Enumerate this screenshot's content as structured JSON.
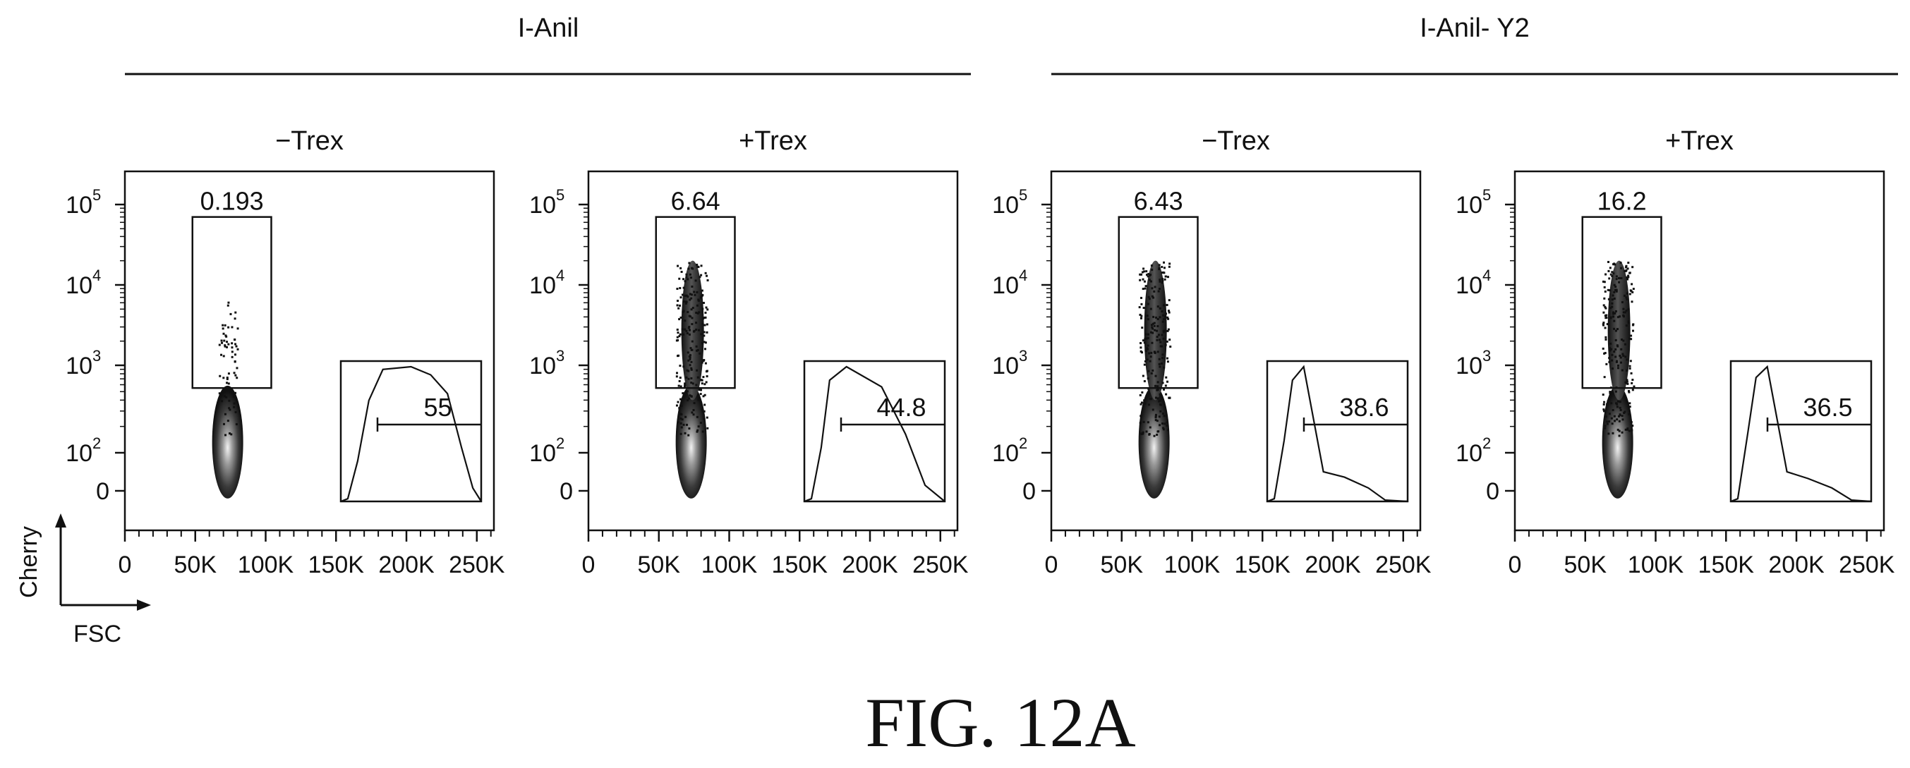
{
  "caption": "FIG. 12A",
  "axes_legend": {
    "y_label": "Cherry",
    "x_label": "FSC"
  },
  "groups": [
    {
      "title": "I-Anil"
    },
    {
      "title": "I-Anil- Y2"
    }
  ],
  "chart_data": [
    {
      "type": "scatter",
      "group": "I-Anil",
      "title": "−Trex",
      "xlabel": "FSC",
      "ylabel": "Cherry",
      "x_ticks": [
        "0",
        "50K",
        "100K",
        "150K",
        "200K",
        "250K"
      ],
      "y_ticks": [
        "0",
        "10",
        "10",
        "10",
        "10"
      ],
      "y_tick_exponents": [
        "",
        "2",
        "3",
        "4",
        "5"
      ],
      "xlim": [
        0,
        262144
      ],
      "y_scale": "biexponential",
      "gate": {
        "label": "0.193",
        "x_range": [
          48000,
          104000
        ],
        "y_range": [
          550,
          70000
        ]
      },
      "inset": {
        "type": "histogram",
        "gate_label": "55",
        "gate_value": 55
      }
    },
    {
      "type": "scatter",
      "group": "I-Anil",
      "title": "+Trex",
      "xlabel": "FSC",
      "ylabel": "Cherry",
      "x_ticks": [
        "0",
        "50K",
        "100K",
        "150K",
        "200K",
        "250K"
      ],
      "y_ticks": [
        "0",
        "10",
        "10",
        "10",
        "10"
      ],
      "y_tick_exponents": [
        "",
        "2",
        "3",
        "4",
        "5"
      ],
      "xlim": [
        0,
        262144
      ],
      "y_scale": "biexponential",
      "gate": {
        "label": "6.64",
        "x_range": [
          48000,
          104000
        ],
        "y_range": [
          550,
          70000
        ]
      },
      "inset": {
        "type": "histogram",
        "gate_label": "44.8",
        "gate_value": 44.8
      }
    },
    {
      "type": "scatter",
      "group": "I-Anil- Y2",
      "title": "−Trex",
      "xlabel": "FSC",
      "ylabel": "Cherry",
      "x_ticks": [
        "0",
        "50K",
        "100K",
        "150K",
        "200K",
        "250K"
      ],
      "y_ticks": [
        "0",
        "10",
        "10",
        "10",
        "10"
      ],
      "y_tick_exponents": [
        "",
        "2",
        "3",
        "4",
        "5"
      ],
      "xlim": [
        0,
        262144
      ],
      "y_scale": "biexponential",
      "gate": {
        "label": "6.43",
        "x_range": [
          48000,
          104000
        ],
        "y_range": [
          550,
          70000
        ]
      },
      "inset": {
        "type": "histogram",
        "gate_label": "38.6",
        "gate_value": 38.6
      }
    },
    {
      "type": "scatter",
      "group": "I-Anil- Y2",
      "title": "+Trex",
      "xlabel": "FSC",
      "ylabel": "Cherry",
      "x_ticks": [
        "0",
        "50K",
        "100K",
        "150K",
        "200K",
        "250K"
      ],
      "y_ticks": [
        "0",
        "10",
        "10",
        "10",
        "10"
      ],
      "y_tick_exponents": [
        "",
        "2",
        "3",
        "4",
        "5"
      ],
      "xlim": [
        0,
        262144
      ],
      "y_scale": "biexponential",
      "gate": {
        "label": "16.2",
        "x_range": [
          48000,
          104000
        ],
        "y_range": [
          550,
          70000
        ]
      },
      "inset": {
        "type": "histogram",
        "gate_label": "36.5",
        "gate_value": 36.5
      }
    }
  ]
}
